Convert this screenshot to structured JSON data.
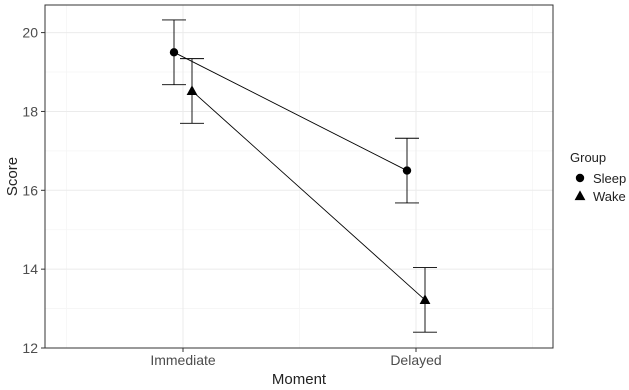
{
  "chart_data": {
    "type": "line",
    "xlabel": "Moment",
    "ylabel": "Score",
    "categories": [
      "Immediate",
      "Delayed"
    ],
    "ylim": [
      12,
      20.7
    ],
    "yticks": [
      12,
      14,
      16,
      18,
      20
    ],
    "grid": true,
    "legend": {
      "title": "Group",
      "placement": "right"
    },
    "series": [
      {
        "name": "Sleep",
        "marker": "circle",
        "values": [
          19.5,
          16.5
        ],
        "error_low": [
          18.68,
          15.68
        ],
        "error_high": [
          20.32,
          17.32
        ]
      },
      {
        "name": "Wake",
        "marker": "triangle",
        "values": [
          18.52,
          13.22
        ],
        "error_low": [
          17.7,
          12.4
        ],
        "error_high": [
          19.34,
          14.04
        ]
      }
    ],
    "colors": {
      "ink": "#000000",
      "panel_border": "#333333",
      "grid_major": "#ebebeb",
      "grid_minor": "#f5f5f5",
      "tick_text": "#4d4d4d"
    }
  }
}
